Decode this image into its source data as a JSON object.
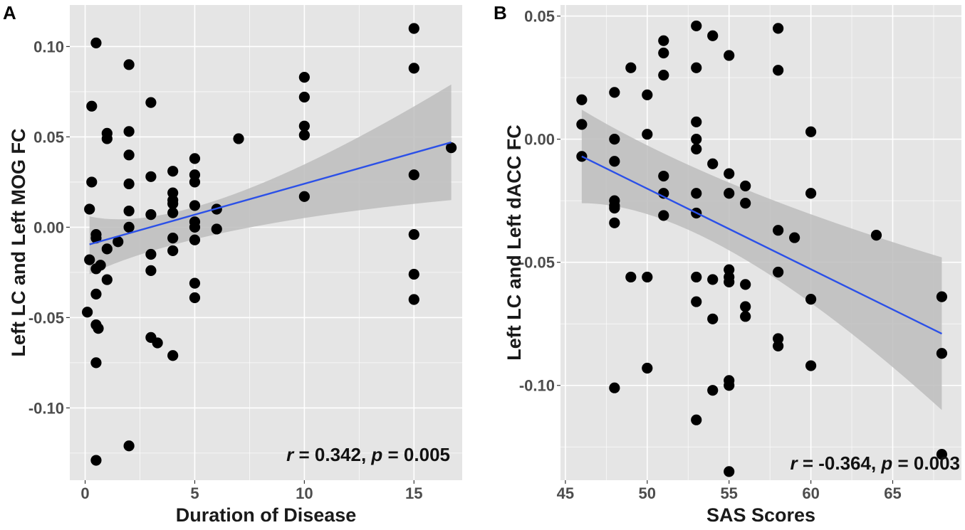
{
  "colors": {
    "panel_bg": "#e5e5e5",
    "grid": "#ffffff",
    "point": "#000000",
    "fit_line": "#2b50e8",
    "ci_band": "#bdbdbd",
    "text": "#1a1a1a"
  },
  "chart_data": [
    {
      "panel_letter": "A",
      "type": "scatter",
      "xlabel": "Duration of Disease",
      "ylabel": "Left LC and Left MOG FC",
      "xlim": [
        -0.7,
        17.2
      ],
      "ylim": [
        -0.14,
        0.123
      ],
      "x_major_ticks": [
        0,
        5,
        10,
        15
      ],
      "x_tick_labels": [
        "0",
        "5",
        "10",
        "15"
      ],
      "y_major_ticks": [
        -0.1,
        -0.05,
        0.0,
        0.05,
        0.1
      ],
      "y_tick_labels": [
        "-0.10",
        "-0.05",
        "0.00",
        "0.05",
        "0.10"
      ],
      "x_minor_ticks": [
        2.5,
        7.5,
        12.5
      ],
      "y_minor_ticks": [
        -0.125,
        -0.075,
        -0.025,
        0.025,
        0.075
      ],
      "annotation": {
        "r_symbol": "r",
        "r_text": " = 0.342, ",
        "p_symbol": "p",
        "p_text": " = 0.005"
      },
      "fit": {
        "x": [
          0.2,
          16.7
        ],
        "y": [
          -0.0095,
          0.047
        ]
      },
      "ci_band": {
        "x": [
          0.2,
          5.0,
          16.7
        ],
        "upper": [
          0.006,
          0.018,
          0.079
        ],
        "lower": [
          -0.026,
          -0.002,
          0.015
        ]
      },
      "points": [
        [
          0.5,
          0.102
        ],
        [
          0.3,
          0.067
        ],
        [
          0.3,
          0.025
        ],
        [
          0.2,
          0.01
        ],
        [
          0.2,
          -0.018
        ],
        [
          0.1,
          -0.047
        ],
        [
          0.5,
          -0.004
        ],
        [
          0.5,
          -0.006
        ],
        [
          0.5,
          -0.023
        ],
        [
          0.7,
          -0.021
        ],
        [
          0.5,
          -0.037
        ],
        [
          0.5,
          -0.054
        ],
        [
          0.6,
          -0.056
        ],
        [
          0.5,
          -0.075
        ],
        [
          0.5,
          -0.129
        ],
        [
          1.0,
          0.052
        ],
        [
          1.0,
          0.049
        ],
        [
          1.0,
          -0.012
        ],
        [
          1.0,
          -0.029
        ],
        [
          1.5,
          -0.008
        ],
        [
          2.0,
          0.09
        ],
        [
          2.0,
          0.053
        ],
        [
          2.0,
          0.04
        ],
        [
          2.0,
          0.024
        ],
        [
          2.0,
          0.009
        ],
        [
          2.0,
          0.0
        ],
        [
          2.0,
          -0.121
        ],
        [
          3.0,
          0.069
        ],
        [
          3.0,
          0.028
        ],
        [
          3.0,
          0.007
        ],
        [
          3.0,
          -0.015
        ],
        [
          3.0,
          -0.024
        ],
        [
          3.0,
          -0.061
        ],
        [
          3.3,
          -0.064
        ],
        [
          4.0,
          0.031
        ],
        [
          4.0,
          0.019
        ],
        [
          4.0,
          0.015
        ],
        [
          4.0,
          0.013
        ],
        [
          4.0,
          0.008
        ],
        [
          4.0,
          -0.006
        ],
        [
          4.0,
          -0.013
        ],
        [
          4.0,
          -0.071
        ],
        [
          5.0,
          0.038
        ],
        [
          5.0,
          0.029
        ],
        [
          5.0,
          0.025
        ],
        [
          5.0,
          0.012
        ],
        [
          5.0,
          0.003
        ],
        [
          5.0,
          0.0
        ],
        [
          5.0,
          -0.007
        ],
        [
          5.0,
          -0.031
        ],
        [
          5.0,
          -0.039
        ],
        [
          6.0,
          0.01
        ],
        [
          6.0,
          -0.001
        ],
        [
          7.0,
          0.049
        ],
        [
          10.0,
          0.083
        ],
        [
          10.0,
          0.072
        ],
        [
          10.0,
          0.056
        ],
        [
          10.0,
          0.051
        ],
        [
          10.0,
          0.017
        ],
        [
          15.0,
          0.11
        ],
        [
          15.0,
          0.088
        ],
        [
          15.0,
          0.029
        ],
        [
          15.0,
          -0.004
        ],
        [
          15.0,
          -0.026
        ],
        [
          15.0,
          -0.04
        ],
        [
          16.7,
          0.044
        ]
      ]
    },
    {
      "panel_letter": "B",
      "type": "scatter",
      "xlabel": "SAS Scores",
      "ylabel": "Left LC and Left dACC FC",
      "xlim": [
        44.7,
        69.2
      ],
      "ylim": [
        -0.1385,
        0.0545
      ],
      "x_major_ticks": [
        45,
        50,
        55,
        60,
        65
      ],
      "x_tick_labels": [
        "45",
        "50",
        "55",
        "60",
        "65"
      ],
      "y_major_ticks": [
        -0.1,
        -0.05,
        0.0,
        0.05
      ],
      "y_tick_labels": [
        "-0.10",
        "-0.05",
        "0.00",
        "0.05"
      ],
      "x_minor_ticks": [
        47.5,
        52.5,
        57.5,
        62.5,
        67.5
      ],
      "y_minor_ticks": [
        -0.125,
        -0.075,
        -0.025,
        0.025
      ],
      "annotation": {
        "r_symbol": "r",
        "r_text": " = -0.364, ",
        "p_symbol": "p",
        "p_text": " = 0.003"
      },
      "fit": {
        "x": [
          46.0,
          68.0
        ],
        "y": [
          -0.007,
          -0.079
        ]
      },
      "ci_band": {
        "x": [
          46.0,
          54.0,
          68.0
        ],
        "upper": [
          0.012,
          -0.019,
          -0.048
        ],
        "lower": [
          -0.026,
          -0.047,
          -0.11
        ]
      },
      "points": [
        [
          46.0,
          0.016
        ],
        [
          46.0,
          0.006
        ],
        [
          46.0,
          -0.007
        ],
        [
          48.0,
          0.019
        ],
        [
          48.0,
          0.0
        ],
        [
          48.0,
          -0.009
        ],
        [
          48.0,
          -0.025
        ],
        [
          48.0,
          -0.027
        ],
        [
          48.0,
          -0.028
        ],
        [
          48.0,
          -0.034
        ],
        [
          48.0,
          -0.101
        ],
        [
          49.0,
          0.029
        ],
        [
          49.0,
          -0.056
        ],
        [
          50.0,
          0.018
        ],
        [
          50.0,
          0.002
        ],
        [
          50.0,
          -0.056
        ],
        [
          50.0,
          -0.093
        ],
        [
          51.0,
          0.04
        ],
        [
          51.0,
          0.035
        ],
        [
          51.0,
          0.026
        ],
        [
          51.0,
          -0.015
        ],
        [
          51.0,
          -0.022
        ],
        [
          51.0,
          -0.031
        ],
        [
          53.0,
          0.046
        ],
        [
          53.0,
          0.029
        ],
        [
          53.0,
          0.007
        ],
        [
          53.0,
          0.0
        ],
        [
          53.0,
          -0.004
        ],
        [
          53.0,
          -0.022
        ],
        [
          53.0,
          -0.03
        ],
        [
          53.0,
          -0.056
        ],
        [
          53.0,
          -0.066
        ],
        [
          53.0,
          -0.114
        ],
        [
          54.0,
          0.042
        ],
        [
          54.0,
          -0.01
        ],
        [
          54.0,
          -0.057
        ],
        [
          54.0,
          -0.073
        ],
        [
          54.0,
          -0.102
        ],
        [
          55.0,
          0.034
        ],
        [
          55.0,
          -0.014
        ],
        [
          55.0,
          -0.022
        ],
        [
          55.0,
          -0.053
        ],
        [
          55.0,
          -0.056
        ],
        [
          55.0,
          -0.058
        ],
        [
          55.0,
          -0.098
        ],
        [
          55.0,
          -0.1
        ],
        [
          55.0,
          -0.135
        ],
        [
          56.0,
          -0.019
        ],
        [
          56.0,
          -0.026
        ],
        [
          56.0,
          -0.059
        ],
        [
          56.0,
          -0.068
        ],
        [
          56.0,
          -0.072
        ],
        [
          58.0,
          0.045
        ],
        [
          58.0,
          0.028
        ],
        [
          58.0,
          -0.037
        ],
        [
          58.0,
          -0.054
        ],
        [
          58.0,
          -0.081
        ],
        [
          58.0,
          -0.084
        ],
        [
          59.0,
          -0.04
        ],
        [
          60.0,
          0.003
        ],
        [
          60.0,
          -0.022
        ],
        [
          60.0,
          -0.065
        ],
        [
          60.0,
          -0.092
        ],
        [
          64.0,
          -0.039
        ],
        [
          68.0,
          -0.064
        ],
        [
          68.0,
          -0.087
        ],
        [
          68.0,
          -0.128
        ]
      ]
    }
  ]
}
